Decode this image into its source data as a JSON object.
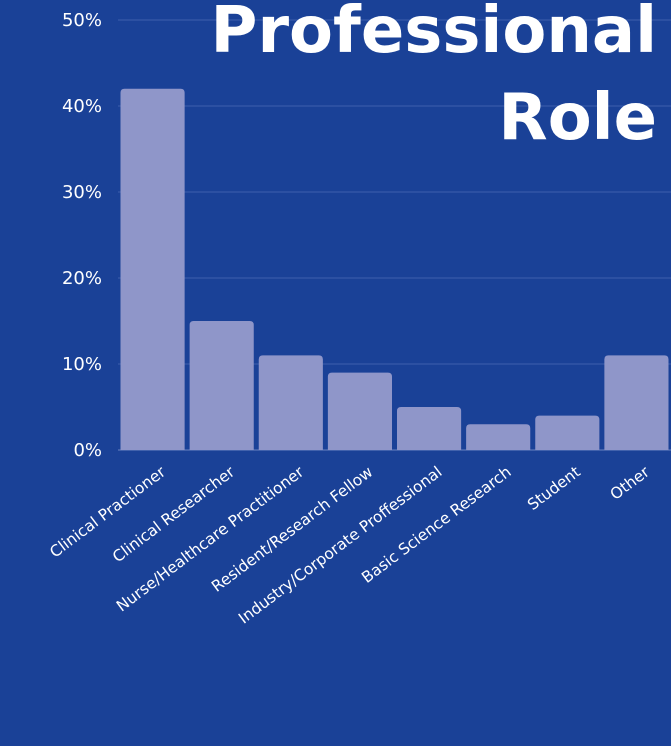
{
  "chart_data": {
    "type": "bar",
    "title_lines": [
      "Professional",
      "Role"
    ],
    "categories": [
      "Clinical Practioner",
      "Clinical Researcher",
      "Nurse/Healthcare Practitioner",
      "Resident/Research Fellow",
      "Industry/Corporate Proffessional",
      "Basic Science Research",
      "Student",
      "Other"
    ],
    "values": [
      42,
      15,
      11,
      9,
      5,
      3,
      4,
      11
    ],
    "unit": "%",
    "ylim": [
      0,
      50
    ],
    "yticks": [
      0,
      10,
      20,
      30,
      40,
      50
    ],
    "ytick_labels": [
      "0%",
      "10%",
      "20%",
      "30%",
      "40%",
      "50%"
    ],
    "grid": true,
    "colors": {
      "background": "#1a4197",
      "bar": "#8f96c9",
      "text": "#ffffff",
      "grid": "#3d60ad"
    }
  }
}
